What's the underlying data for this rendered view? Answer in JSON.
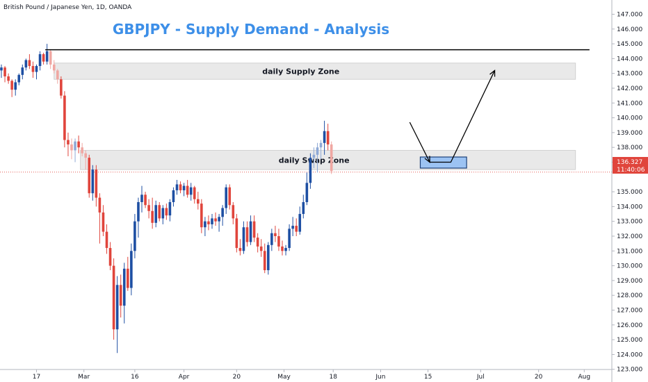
{
  "header": {
    "symbol_label": "British Pound / Japanese Yen, 1D, OANDA"
  },
  "colors": {
    "bull": "#1e4fa3",
    "bear": "#e0453c",
    "bull_faded": "#8fa9d6",
    "bear_faded": "#f0a7a2",
    "title": "#3d8fe8",
    "zone_fill": "#e6e6e6",
    "zone_border": "#c9c9c9",
    "entry_fill": "#9cc3f3",
    "entry_border": "#1c3f78",
    "price_line": "#e0453c",
    "label_bg": "#e0453c"
  },
  "chart_data": {
    "type": "candlestick",
    "title": "GBPJPY - Supply Demand - Analysis",
    "instrument": "British Pound / Japanese Yen",
    "timeframe": "1D",
    "source": "OANDA",
    "y_axis": {
      "range": [
        122.5,
        147.5
      ],
      "ticks": [
        "147.000",
        "146.000",
        "145.000",
        "144.000",
        "143.000",
        "142.000",
        "141.000",
        "140.000",
        "139.000",
        "138.000",
        "137.000",
        "135.000",
        "134.000",
        "133.000",
        "132.000",
        "131.000",
        "130.000",
        "129.000",
        "128.000",
        "127.000",
        "126.000",
        "125.000",
        "124.000",
        "123.000"
      ],
      "position": "right"
    },
    "x_axis": {
      "labels": [
        "17",
        "Mar",
        "16",
        "Apr",
        "20",
        "May",
        "18",
        "Jun",
        "15",
        "Jul",
        "20",
        "Aug"
      ],
      "label_bars": [
        10,
        23.5,
        38,
        52,
        67,
        80.5,
        94.5,
        108,
        121.5,
        136.5,
        153,
        166
      ]
    },
    "last_price": "136.327",
    "countdown": "11:40:06",
    "grid": false,
    "candles": [
      {
        "o": 143.2,
        "h": 143.6,
        "l": 142.7,
        "c": 143.4
      },
      {
        "o": 143.4,
        "h": 143.5,
        "l": 142.4,
        "c": 142.8
      },
      {
        "o": 142.8,
        "h": 143.0,
        "l": 142.3,
        "c": 142.5
      },
      {
        "o": 142.5,
        "h": 142.6,
        "l": 141.4,
        "c": 141.9
      },
      {
        "o": 141.9,
        "h": 142.6,
        "l": 141.5,
        "c": 142.4
      },
      {
        "o": 142.4,
        "h": 143.0,
        "l": 142.2,
        "c": 142.9
      },
      {
        "o": 142.9,
        "h": 143.6,
        "l": 142.6,
        "c": 143.4
      },
      {
        "o": 143.4,
        "h": 144.0,
        "l": 143.2,
        "c": 143.9
      },
      {
        "o": 143.9,
        "h": 144.3,
        "l": 143.3,
        "c": 143.5
      },
      {
        "o": 143.5,
        "h": 143.8,
        "l": 142.7,
        "c": 143.1
      },
      {
        "o": 143.1,
        "h": 143.6,
        "l": 142.6,
        "c": 143.5
      },
      {
        "o": 143.5,
        "h": 144.5,
        "l": 143.2,
        "c": 144.3
      },
      {
        "o": 144.3,
        "h": 144.4,
        "l": 143.6,
        "c": 143.8
      },
      {
        "o": 143.8,
        "h": 145.0,
        "l": 143.6,
        "c": 144.5
      },
      {
        "o": 144.5,
        "h": 144.6,
        "l": 143.3,
        "c": 143.6,
        "faded": true
      },
      {
        "o": 143.6,
        "h": 143.9,
        "l": 143.0,
        "c": 143.2,
        "faded": true
      },
      {
        "o": 143.2,
        "h": 143.3,
        "l": 142.3,
        "c": 142.6,
        "faded": true
      },
      {
        "o": 142.6,
        "h": 142.8,
        "l": 141.3,
        "c": 141.5
      },
      {
        "o": 141.5,
        "h": 141.8,
        "l": 138.0,
        "c": 138.5
      },
      {
        "o": 138.5,
        "h": 139.0,
        "l": 137.4,
        "c": 138.2
      },
      {
        "o": 138.2,
        "h": 138.6,
        "l": 137.2,
        "c": 137.8,
        "faded": true
      },
      {
        "o": 137.8,
        "h": 138.6,
        "l": 137.0,
        "c": 138.4,
        "faded": true
      },
      {
        "o": 138.4,
        "h": 138.8,
        "l": 137.6,
        "c": 138.0
      },
      {
        "o": 138.0,
        "h": 138.3,
        "l": 137.4,
        "c": 137.6,
        "faded": true
      },
      {
        "o": 137.6,
        "h": 137.8,
        "l": 136.5,
        "c": 137.3,
        "faded": true
      },
      {
        "o": 137.3,
        "h": 137.5,
        "l": 134.6,
        "c": 134.9
      },
      {
        "o": 134.9,
        "h": 136.8,
        "l": 134.4,
        "c": 136.5
      },
      {
        "o": 136.5,
        "h": 136.8,
        "l": 134.0,
        "c": 134.6
      },
      {
        "o": 134.6,
        "h": 134.9,
        "l": 131.5,
        "c": 133.6
      },
      {
        "o": 133.6,
        "h": 134.1,
        "l": 132.0,
        "c": 132.3
      },
      {
        "o": 132.3,
        "h": 132.8,
        "l": 130.8,
        "c": 131.2
      },
      {
        "o": 131.2,
        "h": 131.6,
        "l": 129.7,
        "c": 130.0
      },
      {
        "o": 130.0,
        "h": 130.5,
        "l": 125.0,
        "c": 125.7
      },
      {
        "o": 125.7,
        "h": 129.3,
        "l": 124.1,
        "c": 128.7
      },
      {
        "o": 128.7,
        "h": 129.4,
        "l": 126.5,
        "c": 127.3
      },
      {
        "o": 127.3,
        "h": 130.2,
        "l": 126.1,
        "c": 129.8
      },
      {
        "o": 129.8,
        "h": 130.6,
        "l": 128.3,
        "c": 128.5
      },
      {
        "o": 128.5,
        "h": 131.5,
        "l": 128.0,
        "c": 131.0
      },
      {
        "o": 131.0,
        "h": 133.5,
        "l": 130.5,
        "c": 133.0
      },
      {
        "o": 133.0,
        "h": 134.6,
        "l": 131.9,
        "c": 134.3
      },
      {
        "o": 134.3,
        "h": 135.4,
        "l": 133.6,
        "c": 134.8
      },
      {
        "o": 134.8,
        "h": 135.0,
        "l": 133.9,
        "c": 134.1
      },
      {
        "o": 134.1,
        "h": 134.5,
        "l": 133.2,
        "c": 133.7
      },
      {
        "o": 133.7,
        "h": 134.6,
        "l": 132.5,
        "c": 132.9
      },
      {
        "o": 132.9,
        "h": 134.4,
        "l": 132.6,
        "c": 134.1
      },
      {
        "o": 134.1,
        "h": 134.3,
        "l": 133.0,
        "c": 133.2
      },
      {
        "o": 133.2,
        "h": 134.1,
        "l": 132.8,
        "c": 133.9
      },
      {
        "o": 133.9,
        "h": 134.2,
        "l": 133.1,
        "c": 133.4
      },
      {
        "o": 133.4,
        "h": 134.5,
        "l": 133.0,
        "c": 134.3
      },
      {
        "o": 134.3,
        "h": 135.3,
        "l": 134.0,
        "c": 135.1
      },
      {
        "o": 135.1,
        "h": 135.8,
        "l": 134.8,
        "c": 135.5
      },
      {
        "o": 135.5,
        "h": 135.7,
        "l": 134.9,
        "c": 135.1
      },
      {
        "o": 135.1,
        "h": 135.6,
        "l": 134.7,
        "c": 135.4
      },
      {
        "o": 135.4,
        "h": 135.8,
        "l": 134.6,
        "c": 134.8
      },
      {
        "o": 134.8,
        "h": 135.6,
        "l": 134.4,
        "c": 135.3
      },
      {
        "o": 135.3,
        "h": 135.4,
        "l": 134.2,
        "c": 134.5
      },
      {
        "o": 134.5,
        "h": 135.0,
        "l": 133.8,
        "c": 134.2
      },
      {
        "o": 134.2,
        "h": 134.5,
        "l": 132.2,
        "c": 132.6
      },
      {
        "o": 132.6,
        "h": 133.3,
        "l": 132.0,
        "c": 133.0
      },
      {
        "o": 133.0,
        "h": 133.4,
        "l": 132.4,
        "c": 132.8
      },
      {
        "o": 132.8,
        "h": 133.5,
        "l": 132.5,
        "c": 133.2
      },
      {
        "o": 133.2,
        "h": 133.6,
        "l": 132.7,
        "c": 133.0
      },
      {
        "o": 133.0,
        "h": 133.5,
        "l": 132.3,
        "c": 133.3
      },
      {
        "o": 133.3,
        "h": 134.1,
        "l": 132.7,
        "c": 133.9
      },
      {
        "o": 133.9,
        "h": 135.5,
        "l": 133.5,
        "c": 135.3
      },
      {
        "o": 135.3,
        "h": 135.5,
        "l": 133.8,
        "c": 134.1
      },
      {
        "o": 134.1,
        "h": 134.3,
        "l": 132.8,
        "c": 133.2
      },
      {
        "o": 133.2,
        "h": 133.5,
        "l": 130.9,
        "c": 131.2
      },
      {
        "o": 131.2,
        "h": 131.8,
        "l": 130.7,
        "c": 131.0
      },
      {
        "o": 131.0,
        "h": 133.0,
        "l": 130.8,
        "c": 132.6
      },
      {
        "o": 132.6,
        "h": 133.0,
        "l": 131.3,
        "c": 131.6
      },
      {
        "o": 131.6,
        "h": 133.4,
        "l": 131.4,
        "c": 133.0
      },
      {
        "o": 133.0,
        "h": 133.4,
        "l": 131.6,
        "c": 131.9
      },
      {
        "o": 131.9,
        "h": 132.2,
        "l": 130.9,
        "c": 131.3
      },
      {
        "o": 131.3,
        "h": 131.8,
        "l": 130.6,
        "c": 131.0
      },
      {
        "o": 131.0,
        "h": 131.5,
        "l": 129.5,
        "c": 129.7
      },
      {
        "o": 129.7,
        "h": 131.6,
        "l": 129.4,
        "c": 131.4
      },
      {
        "o": 131.4,
        "h": 132.5,
        "l": 131.0,
        "c": 132.2
      },
      {
        "o": 132.2,
        "h": 132.7,
        "l": 131.6,
        "c": 132.0
      },
      {
        "o": 132.0,
        "h": 132.5,
        "l": 131.0,
        "c": 131.3
      },
      {
        "o": 131.3,
        "h": 131.7,
        "l": 130.7,
        "c": 131.0
      },
      {
        "o": 131.0,
        "h": 131.4,
        "l": 130.7,
        "c": 131.2
      },
      {
        "o": 131.2,
        "h": 132.8,
        "l": 131.0,
        "c": 132.5
      },
      {
        "o": 132.5,
        "h": 133.3,
        "l": 132.0,
        "c": 132.7
      },
      {
        "o": 132.7,
        "h": 133.2,
        "l": 132.0,
        "c": 132.3
      },
      {
        "o": 132.3,
        "h": 134.0,
        "l": 132.1,
        "c": 133.5
      },
      {
        "o": 133.5,
        "h": 134.8,
        "l": 133.2,
        "c": 134.3
      },
      {
        "o": 134.3,
        "h": 136.3,
        "l": 134.1,
        "c": 135.6
      },
      {
        "o": 135.6,
        "h": 137.6,
        "l": 135.2,
        "c": 137.3
      },
      {
        "o": 137.3,
        "h": 138.0,
        "l": 136.6,
        "c": 137.5,
        "faded": true
      },
      {
        "o": 137.5,
        "h": 138.3,
        "l": 136.3,
        "c": 138.0,
        "faded": true
      },
      {
        "o": 138.0,
        "h": 138.5,
        "l": 137.2,
        "c": 138.3,
        "faded": true
      },
      {
        "o": 138.3,
        "h": 139.8,
        "l": 137.5,
        "c": 139.1
      },
      {
        "o": 139.1,
        "h": 139.6,
        "l": 137.8,
        "c": 138.2
      },
      {
        "o": 138.2,
        "h": 138.4,
        "l": 136.2,
        "c": 136.4,
        "faded": true
      }
    ],
    "zones": [
      {
        "label": "daily Supply Zone",
        "top": 143.7,
        "bottom": 142.6,
        "start_bar": 15,
        "end_bar": 163.5
      },
      {
        "label": "daily Swap Zone",
        "top": 137.8,
        "bottom": 136.5,
        "start_bar": 22.5,
        "end_bar": 163.5
      }
    ],
    "resistance_line": {
      "price": 144.6,
      "start_bar": 12.5,
      "end_bar": 167.5
    },
    "entry_box": {
      "top": 137.35,
      "bottom": 136.6,
      "start_bar": 119.3,
      "end_bar": 132.5
    },
    "projection": [
      {
        "bar": 116.3,
        "price": 139.7
      },
      {
        "bar": 122,
        "price": 137.0
      },
      {
        "bar": 128,
        "price": 137.0
      },
      {
        "bar": 140.5,
        "price": 143.2
      }
    ]
  }
}
